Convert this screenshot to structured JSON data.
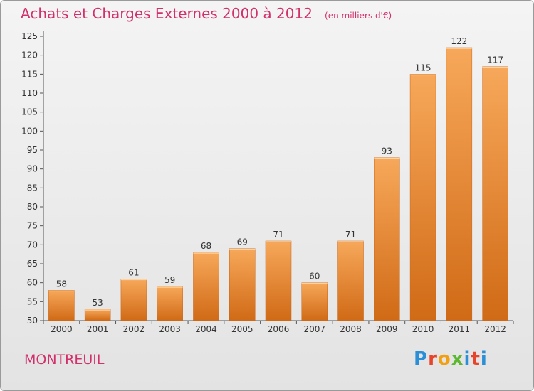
{
  "header": {
    "title": "Achats et Charges Externes 2000 à 2012",
    "subtitle": "(en milliers d'€)"
  },
  "footer": {
    "city": "MONTREUIL",
    "logo_letters": [
      "P",
      "r",
      "o",
      "x",
      "i",
      "t",
      "i"
    ],
    "logo_colors": [
      "#2a8fd6",
      "#e8432b",
      "#f2a013",
      "#5cb82f",
      "#2a8fd6",
      "#e8432b",
      "#2a8fd6"
    ]
  },
  "colors": {
    "bar_top": "#f7a85a",
    "bar_bottom": "#d06a16",
    "axis": "#555555",
    "grid": "#c8c8c8"
  },
  "chart_data": {
    "type": "bar",
    "categories": [
      "2000",
      "2001",
      "2002",
      "2003",
      "2004",
      "2005",
      "2006",
      "2007",
      "2008",
      "2009",
      "2010",
      "2011",
      "2012"
    ],
    "values": [
      58,
      53,
      61,
      59,
      68,
      69,
      71,
      60,
      71,
      93,
      115,
      122,
      117
    ],
    "title": "Achats et Charges Externes 2000 à 2012",
    "subtitle": "(en milliers d'€)",
    "ylim": [
      50,
      125
    ],
    "yticks": [
      50,
      55,
      60,
      65,
      70,
      75,
      80,
      85,
      90,
      95,
      100,
      105,
      110,
      115,
      120,
      125
    ],
    "grid": false
  }
}
